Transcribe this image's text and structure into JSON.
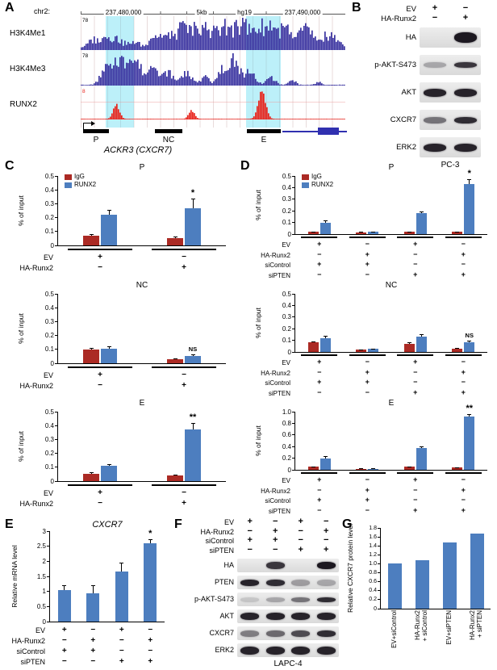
{
  "figure": {
    "background": "#ffffff"
  },
  "colors": {
    "igg_red": "#ab2a24",
    "runx2_blue": "#4d7ebf",
    "track_blue": "#3a33a0",
    "track_red": "#e8221a"
  },
  "panels": {
    "a": {
      "label": "A",
      "chromosome": "chr2:",
      "ruler": {
        "left_coord": "237,480,000",
        "scale": "5kb",
        "genome": "hg19",
        "right_coord": "237,490,000"
      },
      "highlight_color": "rgba(95,220,240,0.42)",
      "highlights": [
        [
          0.095,
          0.105
        ],
        [
          0.625,
          0.13
        ]
      ],
      "tracks": [
        {
          "name": "H3K4Me1",
          "scale": "78",
          "color": "#3a33a0",
          "baseline": 0.08,
          "noise": 0.6,
          "peaks": [
            [
              0.05,
              0.02,
              0.35
            ],
            [
              0.12,
              0.03,
              0.5
            ],
            [
              0.2,
              0.02,
              0.3
            ],
            [
              0.3,
              0.03,
              0.55
            ],
            [
              0.38,
              0.03,
              0.75
            ],
            [
              0.46,
              0.035,
              0.9
            ],
            [
              0.54,
              0.03,
              0.8
            ],
            [
              0.62,
              0.035,
              0.95
            ],
            [
              0.7,
              0.03,
              0.85
            ],
            [
              0.78,
              0.035,
              0.8
            ],
            [
              0.86,
              0.03,
              0.7
            ],
            [
              0.94,
              0.03,
              0.6
            ]
          ]
        },
        {
          "name": "H3K4Me3",
          "scale": "78",
          "color": "#3a33a0",
          "baseline": 0.03,
          "noise": 0.5,
          "peaks": [
            [
              0.1,
              0.02,
              0.85
            ],
            [
              0.15,
              0.025,
              1.0
            ],
            [
              0.21,
              0.02,
              0.9
            ],
            [
              0.27,
              0.02,
              0.6
            ],
            [
              0.33,
              0.02,
              0.5
            ],
            [
              0.4,
              0.02,
              0.45
            ],
            [
              0.47,
              0.015,
              0.3
            ],
            [
              0.54,
              0.02,
              0.6
            ],
            [
              0.58,
              0.02,
              0.95
            ],
            [
              0.64,
              0.02,
              0.55
            ],
            [
              0.72,
              0.015,
              0.3
            ],
            [
              0.8,
              0.012,
              0.2
            ],
            [
              0.9,
              0.01,
              0.12
            ]
          ]
        },
        {
          "name": "RUNX2",
          "scale": "8",
          "color": "#e8221a",
          "baseline": 0.02,
          "noise": 0.2,
          "peaks": [
            [
              0.135,
              0.012,
              0.5
            ],
            [
              0.42,
              0.011,
              0.3
            ],
            [
              0.685,
              0.014,
              1.0
            ]
          ]
        }
      ],
      "elements": {
        "p": "P",
        "nc": "NC",
        "e": "E",
        "gene": "ACKR3 (CXCR7)"
      }
    },
    "b": {
      "label": "B",
      "conditions": [
        {
          "label": "EV",
          "values": [
            "+",
            "−"
          ]
        },
        {
          "label": "HA-Runx2",
          "values": [
            "−",
            "+"
          ]
        }
      ],
      "rows": [
        {
          "label": "HA",
          "bands": [
            0,
            1
          ],
          "bh": 13
        },
        {
          "label": "p-AKT-S473",
          "bands": [
            0.3,
            0.85
          ],
          "bh": 7
        },
        {
          "label": "AKT",
          "bands": [
            0.95,
            0.95
          ],
          "bh": 10
        },
        {
          "label": "CXCR7",
          "bands": [
            0.55,
            0.9
          ],
          "bh": 8
        },
        {
          "label": "ERK2",
          "bands": [
            0.95,
            0.95
          ],
          "bh": 10
        }
      ],
      "cell_line": "PC-3"
    },
    "c": {
      "label": "C"
    },
    "d": {
      "label": "D"
    },
    "e": {
      "label": "E"
    },
    "f": {
      "label": "F",
      "conditions": [
        {
          "label": "EV",
          "values": [
            "+",
            "−",
            "+",
            "−"
          ]
        },
        {
          "label": "HA-Runx2",
          "values": [
            "−",
            "+",
            "−",
            "+"
          ]
        },
        {
          "label": "siControl",
          "values": [
            "+",
            "+",
            "−",
            "−"
          ]
        },
        {
          "label": "siPTEN",
          "values": [
            "−",
            "−",
            "+",
            "+"
          ]
        }
      ],
      "rows": [
        {
          "label": "HA",
          "bands": [
            0,
            0.85,
            0,
            1
          ],
          "bh": 9
        },
        {
          "label": "PTEN",
          "bands": [
            0.95,
            0.9,
            0.35,
            0.3
          ],
          "bh": 8
        },
        {
          "label": "p-AKT-S473",
          "bands": [
            0.15,
            0.3,
            0.55,
            0.9
          ],
          "bh": 6
        },
        {
          "label": "AKT",
          "bands": [
            0.95,
            0.95,
            0.95,
            0.95
          ],
          "bh": 9
        },
        {
          "label": "CXCR7",
          "bands": [
            0.5,
            0.6,
            0.75,
            0.9
          ],
          "bh": 8
        },
        {
          "label": "ERK2",
          "bands": [
            0.95,
            0.95,
            0.95,
            0.95
          ],
          "bh": 10
        }
      ],
      "cell_line": "LAPC-4"
    },
    "g": {
      "label": "G"
    }
  },
  "chart_data": {
    "c_p": {
      "type": "bar",
      "title": "P",
      "ylabel": "% of input",
      "ymax": 0.5,
      "yticks": [
        "0",
        "0.1",
        "0.2",
        "0.3",
        "0.4",
        "0.5"
      ],
      "legend": true,
      "series": [
        {
          "name": "IgG",
          "color": "#ab2a24"
        },
        {
          "name": "RUNX2",
          "color": "#4d7ebf"
        }
      ],
      "groups": [
        {
          "values": [
            0.07,
            0.22
          ],
          "errors": [
            0.012,
            0.035
          ]
        },
        {
          "values": [
            0.055,
            0.27
          ],
          "errors": [
            0.01,
            0.07
          ]
        }
      ],
      "sig": [
        {
          "group": 1,
          "bar": 1,
          "text": "*"
        }
      ],
      "conditions": [
        {
          "label": "EV",
          "values": [
            "+",
            "−"
          ]
        },
        {
          "label": "HA-Runx2",
          "values": [
            "−",
            "+"
          ]
        }
      ]
    },
    "c_nc": {
      "type": "bar",
      "title": "NC",
      "ylabel": "% of input",
      "ymax": 0.5,
      "yticks": [
        "0",
        "0.1",
        "0.2",
        "0.3",
        "0.4",
        "0.5"
      ],
      "legend": false,
      "series": [
        {
          "name": "IgG",
          "color": "#ab2a24"
        },
        {
          "name": "RUNX2",
          "color": "#4d7ebf"
        }
      ],
      "groups": [
        {
          "values": [
            0.1,
            0.105
          ],
          "errors": [
            0.012,
            0.02
          ]
        },
        {
          "values": [
            0.03,
            0.05
          ],
          "errors": [
            0.005,
            0.012
          ]
        }
      ],
      "sig": [
        {
          "group": 1,
          "bar": 1,
          "text": "NS"
        }
      ],
      "conditions": [
        {
          "label": "EV",
          "values": [
            "+",
            "−"
          ]
        },
        {
          "label": "HA-Runx2",
          "values": [
            "−",
            "+"
          ]
        }
      ]
    },
    "c_e": {
      "type": "bar",
      "title": "E",
      "ylabel": "% of input",
      "ymax": 0.5,
      "yticks": [
        "0",
        "0.1",
        "0.2",
        "0.3",
        "0.4",
        "0.5"
      ],
      "legend": false,
      "series": [
        {
          "name": "IgG",
          "color": "#ab2a24"
        },
        {
          "name": "RUNX2",
          "color": "#4d7ebf"
        }
      ],
      "groups": [
        {
          "values": [
            0.05,
            0.11
          ],
          "errors": [
            0.015,
            0.012
          ]
        },
        {
          "values": [
            0.04,
            0.37
          ],
          "errors": [
            0.008,
            0.05
          ]
        }
      ],
      "sig": [
        {
          "group": 1,
          "bar": 1,
          "text": "**"
        }
      ],
      "conditions": [
        {
          "label": "EV",
          "values": [
            "+",
            "−"
          ]
        },
        {
          "label": "HA-Runx2",
          "values": [
            "−",
            "+"
          ]
        }
      ]
    },
    "d_p": {
      "type": "bar",
      "title": "P",
      "ylabel": "% of input",
      "ymax": 0.5,
      "yticks": [
        "0",
        "0.1",
        "0.2",
        "0.3",
        "0.4",
        "0.5"
      ],
      "legend": true,
      "series": [
        {
          "name": "IgG",
          "color": "#ab2a24"
        },
        {
          "name": "RUNX2",
          "color": "#4d7ebf"
        }
      ],
      "groups": [
        {
          "values": [
            0.02,
            0.095
          ],
          "errors": [
            0.004,
            0.025
          ]
        },
        {
          "values": [
            0.015,
            0.02
          ],
          "errors": [
            0.003,
            0.004
          ]
        },
        {
          "values": [
            0.02,
            0.18
          ],
          "errors": [
            0.004,
            0.012
          ]
        },
        {
          "values": [
            0.02,
            0.43
          ],
          "errors": [
            0.004,
            0.045
          ]
        }
      ],
      "sig": [
        {
          "group": 3,
          "bar": 1,
          "text": "*"
        }
      ],
      "conditions": [
        {
          "label": "EV",
          "values": [
            "+",
            "−",
            "+",
            "−"
          ]
        },
        {
          "label": "HA-Runx2",
          "values": [
            "−",
            "+",
            "−",
            "+"
          ]
        },
        {
          "label": "siControl",
          "values": [
            "+",
            "+",
            "−",
            "−"
          ]
        },
        {
          "label": "siPTEN",
          "values": [
            "−",
            "−",
            "+",
            "+"
          ]
        }
      ]
    },
    "d_nc": {
      "type": "bar",
      "title": "NC",
      "ylabel": "% of input",
      "ymax": 0.5,
      "yticks": [
        "0",
        "0.1",
        "0.2",
        "0.3",
        "0.4",
        "0.5"
      ],
      "legend": false,
      "series": [
        {
          "name": "IgG",
          "color": "#ab2a24"
        },
        {
          "name": "RUNX2",
          "color": "#4d7ebf"
        }
      ],
      "groups": [
        {
          "values": [
            0.08,
            0.12
          ],
          "errors": [
            0.01,
            0.02
          ]
        },
        {
          "values": [
            0.02,
            0.025
          ],
          "errors": [
            0.004,
            0.005
          ]
        },
        {
          "values": [
            0.07,
            0.13
          ],
          "errors": [
            0.012,
            0.02
          ]
        },
        {
          "values": [
            0.03,
            0.08
          ],
          "errors": [
            0.006,
            0.015
          ]
        }
      ],
      "sig": [
        {
          "group": 3,
          "bar": 1,
          "text": "NS"
        }
      ],
      "conditions": [
        {
          "label": "EV",
          "values": [
            "+",
            "−",
            "+",
            "−"
          ]
        },
        {
          "label": "HA-Runx2",
          "values": [
            "−",
            "+",
            "−",
            "+"
          ]
        },
        {
          "label": "siControl",
          "values": [
            "+",
            "+",
            "−",
            "−"
          ]
        },
        {
          "label": "siPTEN",
          "values": [
            "−",
            "−",
            "+",
            "+"
          ]
        }
      ]
    },
    "d_e": {
      "type": "bar",
      "title": "E",
      "ylabel": "% of input",
      "ymax": 1.0,
      "yticks": [
        "0",
        "0.2",
        "0.4",
        "0.6",
        "0.8",
        "1.0"
      ],
      "legend": false,
      "series": [
        {
          "name": "IgG",
          "color": "#ab2a24"
        },
        {
          "name": "RUNX2",
          "color": "#4d7ebf"
        }
      ],
      "groups": [
        {
          "values": [
            0.05,
            0.2
          ],
          "errors": [
            0.01,
            0.03
          ]
        },
        {
          "values": [
            0.02,
            0.02
          ],
          "errors": [
            0.004,
            0.004
          ]
        },
        {
          "values": [
            0.05,
            0.38
          ],
          "errors": [
            0.01,
            0.02
          ]
        },
        {
          "values": [
            0.04,
            0.92
          ],
          "errors": [
            0.008,
            0.04
          ]
        }
      ],
      "sig": [
        {
          "group": 3,
          "bar": 1,
          "text": "**"
        }
      ],
      "conditions": [
        {
          "label": "EV",
          "values": [
            "+",
            "−",
            "+",
            "−"
          ]
        },
        {
          "label": "HA-Runx2",
          "values": [
            "−",
            "+",
            "−",
            "+"
          ]
        },
        {
          "label": "siControl",
          "values": [
            "+",
            "+",
            "−",
            "−"
          ]
        },
        {
          "label": "siPTEN",
          "values": [
            "−",
            "−",
            "+",
            "+"
          ]
        }
      ]
    },
    "e": {
      "type": "bar",
      "title": "CXCR7",
      "title_italic": true,
      "ylabel": "Relative mRNA level",
      "ymax": 3,
      "yticks": [
        "0",
        "0.5",
        "1",
        "1.5",
        "2",
        "2.5",
        "3"
      ],
      "legend": false,
      "series": [
        {
          "name": "mRNA",
          "color": "#4d7ebf"
        }
      ],
      "groups": [
        {
          "values": [
            1.05
          ],
          "errors": [
            0.15
          ]
        },
        {
          "values": [
            0.95
          ],
          "errors": [
            0.25
          ]
        },
        {
          "values": [
            1.65
          ],
          "errors": [
            0.3
          ]
        },
        {
          "values": [
            2.6
          ],
          "errors": [
            0.12
          ]
        }
      ],
      "sig": [
        {
          "group": 3,
          "bar": 0,
          "text": "*"
        }
      ],
      "conditions": [
        {
          "label": "EV",
          "values": [
            "+",
            "−",
            "+",
            "−"
          ]
        },
        {
          "label": "HA-Runx2",
          "values": [
            "−",
            "+",
            "−",
            "+"
          ]
        },
        {
          "label": "siControl",
          "values": [
            "+",
            "+",
            "−",
            "−"
          ]
        },
        {
          "label": "siPTEN",
          "values": [
            "−",
            "−",
            "+",
            "+"
          ]
        }
      ]
    },
    "g": {
      "type": "bar",
      "title": "",
      "ylabel": "Relative CXCR7 protein level",
      "ymax": 1.8,
      "yticks": [
        "0",
        "0.2",
        "0.4",
        "0.6",
        "0.8",
        "1.0",
        "1.2",
        "1.4",
        "1.6",
        "1.8"
      ],
      "legend": false,
      "series": [
        {
          "name": "CXCR7 protein",
          "color": "#4d7ebf"
        }
      ],
      "groups": [
        {
          "values": [
            1.0
          ]
        },
        {
          "values": [
            1.08
          ]
        },
        {
          "values": [
            1.48
          ]
        },
        {
          "values": [
            1.68
          ]
        }
      ],
      "xlabels": [
        [
          "EV+siControl"
        ],
        [
          "HA-Runx2",
          "+ siControl"
        ],
        [
          "EV+siPTEN"
        ],
        [
          "HA-Runx2",
          "+ siPTEN"
        ]
      ]
    }
  }
}
